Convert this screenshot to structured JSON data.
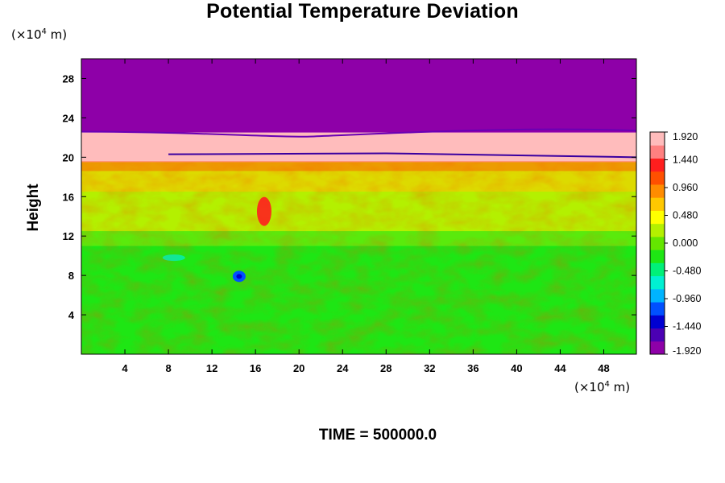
{
  "chart_data": {
    "type": "heatmap",
    "title": "Potential Temperature Deviation",
    "ylabel": "Height",
    "y_unit_prefix": "(×10",
    "y_unit_exp": "4",
    "y_unit_suffix": " m)",
    "x_unit_prefix": "(×10",
    "x_unit_exp": "4",
    "x_unit_suffix": " m)",
    "footer": "TIME = 500000.0",
    "xlim": [
      0,
      51
    ],
    "ylim": [
      0,
      30
    ],
    "x_ticks": [
      4,
      8,
      12,
      16,
      20,
      24,
      28,
      32,
      36,
      40,
      44,
      48
    ],
    "x_tick_labels": [
      "4",
      "8",
      "12",
      "16",
      "20",
      "24",
      "28",
      "32",
      "36",
      "40",
      "44",
      "48"
    ],
    "y_ticks": [
      4,
      8,
      12,
      16,
      20,
      24,
      28
    ],
    "y_tick_labels": [
      "4",
      "8",
      "12",
      "16",
      "20",
      "24",
      "28"
    ],
    "colorbar": {
      "range": [
        -1.92,
        1.92
      ],
      "ticks": [
        1.92,
        1.44,
        0.96,
        0.48,
        0.0,
        -0.48,
        -0.96,
        -1.44,
        -1.92
      ],
      "tick_labels": [
        "1.920",
        "1.440",
        "0.960",
        "0.480",
        "0.000",
        "-0.480",
        "-0.960",
        "-1.440",
        "-1.920"
      ],
      "colors": [
        "#8e00a8",
        "#4b00b4",
        "#0000d2",
        "#0050ff",
        "#00b4ff",
        "#00f0d2",
        "#00f078",
        "#1ee614",
        "#64e600",
        "#b4f000",
        "#ffff00",
        "#ffc800",
        "#ff8c00",
        "#ff5000",
        "#ff1e1e",
        "#ff8080",
        "#ffbcbc"
      ]
    },
    "regions": [
      {
        "name": "upper",
        "y_range": [
          22.5,
          30
        ],
        "value": -1.92
      },
      {
        "name": "pink-band",
        "y_range": [
          19.5,
          22.5
        ],
        "value": 1.92
      },
      {
        "name": "warm-turbulent",
        "y_range": [
          11,
          19.5
        ],
        "value": 0.3
      },
      {
        "name": "lower",
        "y_range": [
          0,
          11
        ],
        "value": -0.25
      }
    ]
  }
}
